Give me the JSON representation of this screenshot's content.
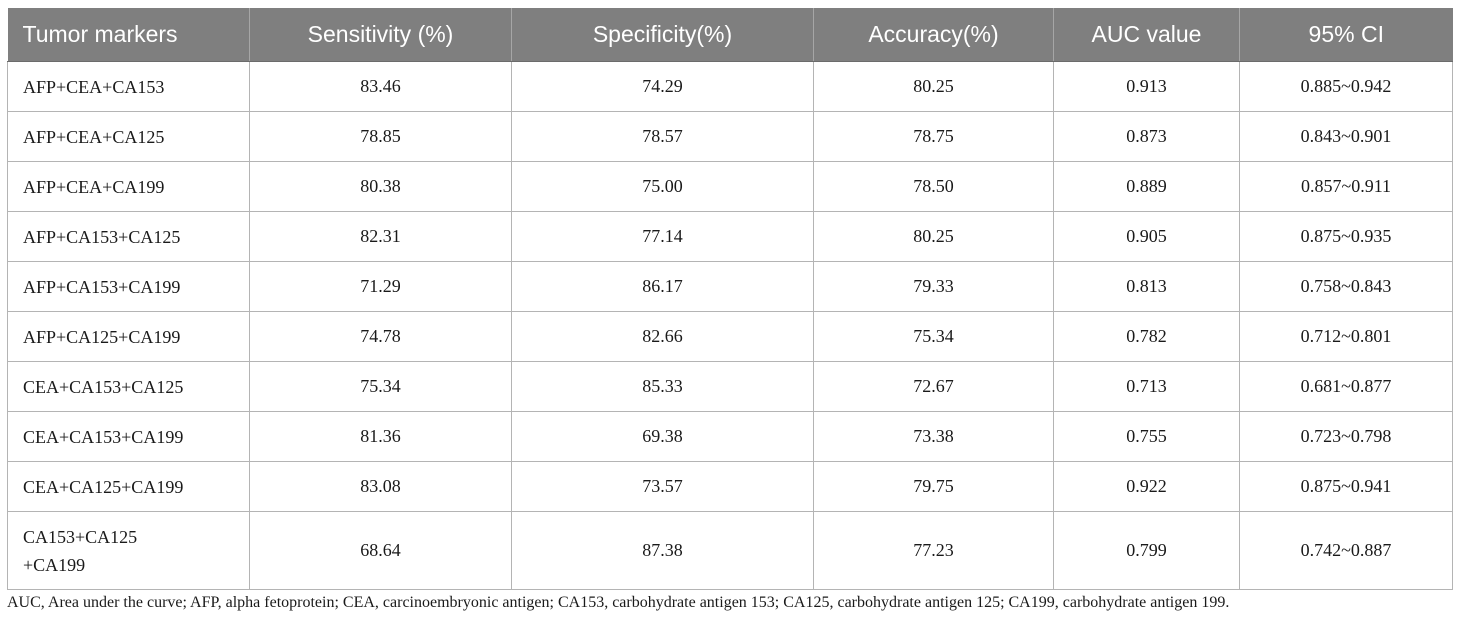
{
  "table": {
    "headers": [
      "Tumor markers",
      "Sensitivity (%)",
      "Specificity(%)",
      "Accuracy(%)",
      "AUC value",
      "95% CI"
    ],
    "rows": [
      {
        "marker": [
          "AFP+CEA+CA153"
        ],
        "sensitivity": "83.46",
        "specificity": "74.29",
        "accuracy": "80.25",
        "auc": "0.913",
        "ci": "0.885~0.942"
      },
      {
        "marker": [
          "AFP+CEA+CA125"
        ],
        "sensitivity": "78.85",
        "specificity": "78.57",
        "accuracy": "78.75",
        "auc": "0.873",
        "ci": "0.843~0.901"
      },
      {
        "marker": [
          "AFP+CEA+CA199"
        ],
        "sensitivity": "80.38",
        "specificity": "75.00",
        "accuracy": "78.50",
        "auc": "0.889",
        "ci": "0.857~0.911"
      },
      {
        "marker": [
          "AFP+CA153+CA125"
        ],
        "sensitivity": "82.31",
        "specificity": "77.14",
        "accuracy": "80.25",
        "auc": "0.905",
        "ci": "0.875~0.935"
      },
      {
        "marker": [
          "AFP+CA153+CA199"
        ],
        "sensitivity": "71.29",
        "specificity": "86.17",
        "accuracy": "79.33",
        "auc": "0.813",
        "ci": "0.758~0.843"
      },
      {
        "marker": [
          "AFP+CA125+CA199"
        ],
        "sensitivity": "74.78",
        "specificity": "82.66",
        "accuracy": "75.34",
        "auc": "0.782",
        "ci": "0.712~0.801"
      },
      {
        "marker": [
          "CEA+CA153+CA125"
        ],
        "sensitivity": "75.34",
        "specificity": "85.33",
        "accuracy": "72.67",
        "auc": "0.713",
        "ci": "0.681~0.877"
      },
      {
        "marker": [
          "CEA+CA153+CA199"
        ],
        "sensitivity": "81.36",
        "specificity": "69.38",
        "accuracy": "73.38",
        "auc": "0.755",
        "ci": "0.723~0.798"
      },
      {
        "marker": [
          "CEA+CA125+CA199"
        ],
        "sensitivity": "83.08",
        "specificity": "73.57",
        "accuracy": "79.75",
        "auc": "0.922",
        "ci": "0.875~0.941"
      },
      {
        "marker": [
          "CA153+CA125",
          "+CA199"
        ],
        "sensitivity": "68.64",
        "specificity": "87.38",
        "accuracy": "77.23",
        "auc": "0.799",
        "ci": "0.742~0.887"
      }
    ]
  },
  "footnote": "AUC, Area under the curve; AFP, alpha fetoprotein; CEA, carcinoembryonic antigen; CA153, carbohydrate antigen 153; CA125, carbohydrate antigen 125; CA199, carbohydrate antigen 199.",
  "colors": {
    "header_bg": "#7f7f7f",
    "header_text": "#ffffff",
    "grid": "#b4b4b4"
  }
}
